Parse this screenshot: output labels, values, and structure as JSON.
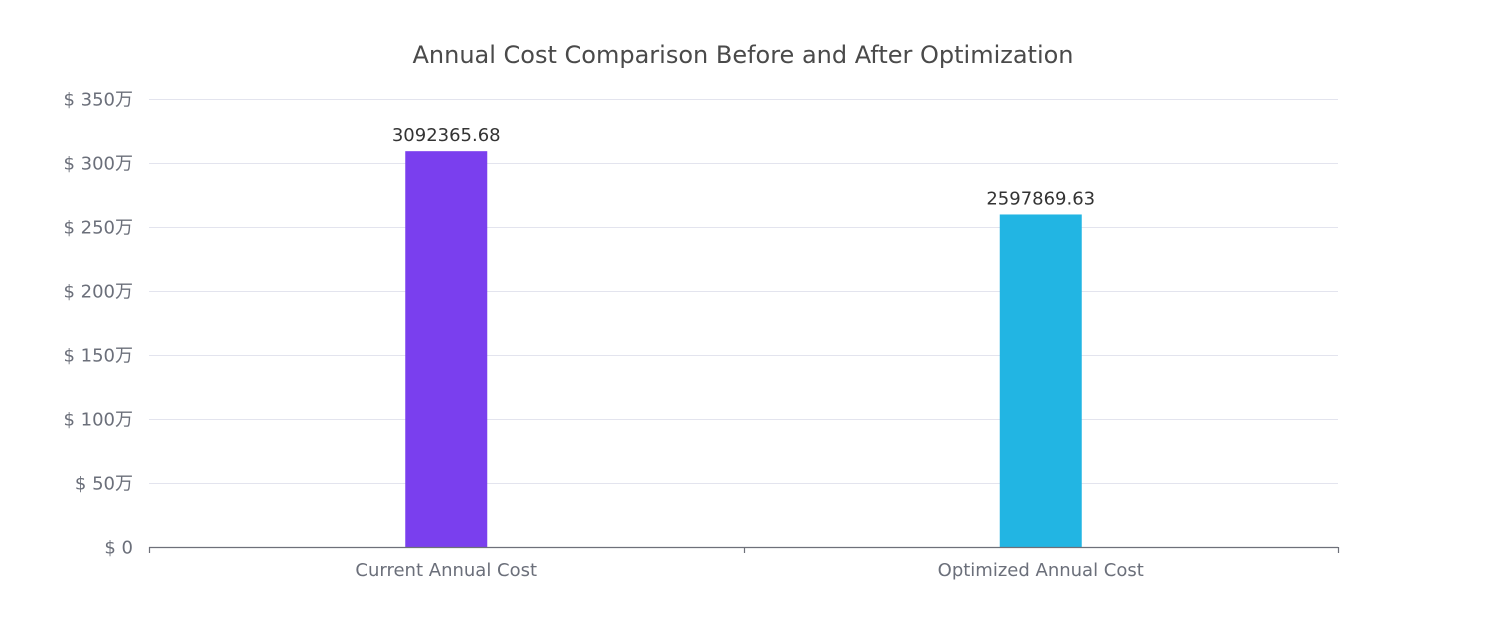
{
  "chart_data": {
    "type": "bar",
    "title": "Annual Cost Comparison Before and After Optimization",
    "categories": [
      "Current Annual Cost",
      "Optimized Annual Cost"
    ],
    "series": [
      {
        "values": [
          3092365.68,
          2597869.63
        ],
        "data_labels": [
          "3092365.68",
          "2597869.63"
        ],
        "colors": [
          "#7a3fee",
          "#22b5e3"
        ]
      }
    ],
    "ylim": [
      0,
      3500000
    ],
    "y_ticks": [
      0,
      500000,
      1000000,
      1500000,
      2000000,
      2500000,
      3000000,
      3500000
    ],
    "y_tick_labels": [
      "$ 0",
      "$ 50万",
      "$ 100万",
      "$ 150万",
      "$ 200万",
      "$ 250万",
      "$ 300万",
      "$ 350万"
    ],
    "grid": true,
    "xlabel": "",
    "ylabel": ""
  }
}
